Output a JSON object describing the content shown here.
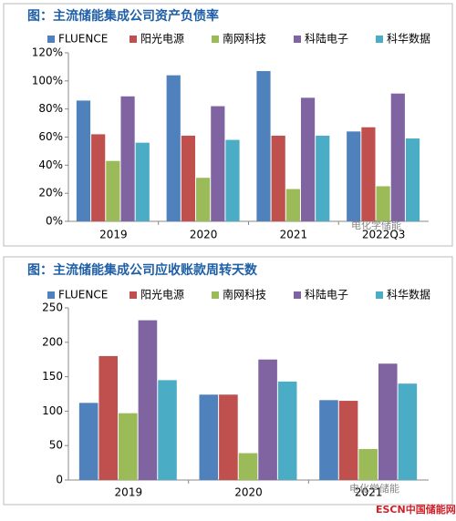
{
  "chart_data": [
    {
      "type": "bar",
      "title": "图：主流储能集成公司资产负债率",
      "categories": [
        "2019",
        "2020",
        "2021",
        "2022Q3"
      ],
      "series": [
        {
          "name": "FLUENCE",
          "color": "#4f81bd",
          "values": [
            86,
            104,
            107,
            64
          ]
        },
        {
          "name": "阳光电源",
          "color": "#c0504d",
          "values": [
            62,
            61,
            61,
            67
          ]
        },
        {
          "name": "南网科技",
          "color": "#9bbb59",
          "values": [
            43,
            31,
            23,
            25
          ]
        },
        {
          "name": "科陆电子",
          "color": "#8064a2",
          "values": [
            89,
            82,
            88,
            91
          ]
        },
        {
          "name": "科华数据",
          "color": "#4bacc6",
          "values": [
            56,
            58,
            61,
            59
          ]
        }
      ],
      "ylim": [
        0,
        120
      ],
      "yticks": [
        {
          "value": 0,
          "label": "0%"
        },
        {
          "value": 20,
          "label": "20%"
        },
        {
          "value": 40,
          "label": "40%"
        },
        {
          "value": 60,
          "label": "60%"
        },
        {
          "value": 80,
          "label": "80%"
        },
        {
          "value": 100,
          "label": "100%"
        },
        {
          "value": 120,
          "label": "120%"
        }
      ]
    },
    {
      "type": "bar",
      "title": "图：主流储能集成公司应收账款周转天数",
      "categories": [
        "2019",
        "2020",
        "2021"
      ],
      "series": [
        {
          "name": "FLUENCE",
          "color": "#4f81bd",
          "values": [
            112,
            124,
            116
          ]
        },
        {
          "name": "阳光电源",
          "color": "#c0504d",
          "values": [
            180,
            124,
            115
          ]
        },
        {
          "name": "南网科技",
          "color": "#9bbb59",
          "values": [
            97,
            39,
            45
          ]
        },
        {
          "name": "科陆电子",
          "color": "#8064a2",
          "values": [
            232,
            175,
            169
          ]
        },
        {
          "name": "科华数据",
          "color": "#4bacc6",
          "values": [
            145,
            143,
            140
          ]
        }
      ],
      "ylim": [
        0,
        250
      ],
      "yticks": [
        0,
        50,
        100,
        150,
        200,
        250
      ]
    }
  ],
  "watermarks": [
    "电化学储能",
    "电化学储能",
    "ESCN中国储能网"
  ]
}
